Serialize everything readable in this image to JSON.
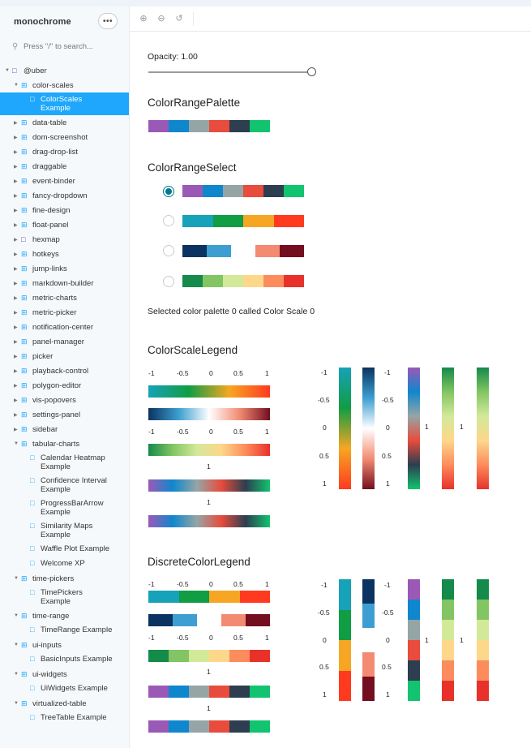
{
  "app": {
    "title": "monochrome",
    "more_label": "•••"
  },
  "search": {
    "placeholder": "Press \"/\" to search..."
  },
  "colors": {
    "accent": "#1ea7fd",
    "radio_active": "#00798f"
  },
  "tree": {
    "root_label": "@uber",
    "color_scales": "color-scales",
    "color_scales_example": "ColorScales\nExample",
    "data_table": "data-table",
    "dom_screenshot": "dom-screenshot",
    "drag_drop_list": "drag-drop-list",
    "draggable": "draggable",
    "event_binder": "event-binder",
    "fancy_dropdown": "fancy-dropdown",
    "fine_design": "fine-design",
    "float_panel": "float-panel",
    "hexmap": "hexmap",
    "hotkeys": "hotkeys",
    "jump_links": "jump-links",
    "markdown_builder": "markdown-builder",
    "metric_charts": "metric-charts",
    "metric_picker": "metric-picker",
    "notification_center": "notification-center",
    "panel_manager": "panel-manager",
    "picker": "picker",
    "playback_control": "playback-control",
    "polygon_editor": "polygon-editor",
    "vis_popovers": "vis-popovers",
    "settings_panel": "settings-panel",
    "sidebar": "sidebar",
    "tabular_charts": "tabular-charts",
    "calendar_heatmap": "Calendar Heatmap\nExample",
    "confidence_interval": "Confidence Interval\nExample",
    "progress_bar_arrow": "ProgressBarArrow\nExample",
    "similarity_maps": "Similarity Maps\nExample",
    "waffle_plot": "Waffle Plot Example",
    "welcome_xp": "Welcome XP",
    "time_pickers": "time-pickers",
    "time_pickers_example": "TimePickers\nExample",
    "time_range": "time-range",
    "time_range_example": "TimeRange Example",
    "ui_inputs": "ui-inputs",
    "basic_inputs_example": "BasicInputs Example",
    "ui_widgets": "ui-widgets",
    "ui_widgets_example": "UiWidgets Example",
    "virtualized_table": "virtualized-table",
    "tree_table_example": "TreeTable Example"
  },
  "opacity": {
    "label": "Opacity: 1.00",
    "value": 1.0
  },
  "headings": {
    "palette": "ColorRangePalette",
    "select": "ColorRangeSelect",
    "legend": "ColorScaleLegend",
    "discrete": "DiscreteColorLegend"
  },
  "selected_text": "Selected color palette 0 called Color Scale 0",
  "ticks": {
    "neg1": "-1",
    "neg05": "-0.5",
    "zero": "0",
    "pos05": "0.5",
    "pos1": "1"
  },
  "palettes": {
    "scale0": [
      "#9b59b6",
      "#0f87cd",
      "#95a5a6",
      "#e74c3c",
      "#2c3e50",
      "#12c46f"
    ],
    "scale1": [
      "#16a2b8",
      "#109d43",
      "#f6a623",
      "#ff3a1f"
    ],
    "scale2": [
      "#0a3361",
      "#3d9fd1",
      "#ffffff",
      "#f38b72",
      "#730f1f"
    ],
    "scale3": [
      "#148a4b",
      "#82c562",
      "#d3e99a",
      "#fdd78a",
      "#fd8c5c",
      "#e8312b"
    ]
  }
}
